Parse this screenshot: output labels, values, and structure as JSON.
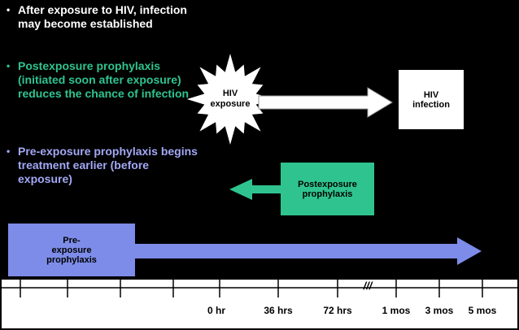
{
  "bullets": [
    {
      "text": "After exposure to HIV, infection may become established"
    },
    {
      "text": "Postexposure prophylaxis (initiated soon after exposure) reduces the chance of infection"
    },
    {
      "text": "Pre-exposure prophylaxis begins treatment earlier (before exposure)"
    }
  ],
  "diagram": {
    "exposure": "HIV exposure",
    "infection": "HIV infection",
    "pep": "Postexposure prophylaxis",
    "prep": "Pre-exposure prophylaxis"
  },
  "timeline": {
    "labels": [
      "0 hr",
      "36 hrs",
      "72 hrs",
      "1 mos",
      "3 mos",
      "5 mos"
    ]
  }
}
